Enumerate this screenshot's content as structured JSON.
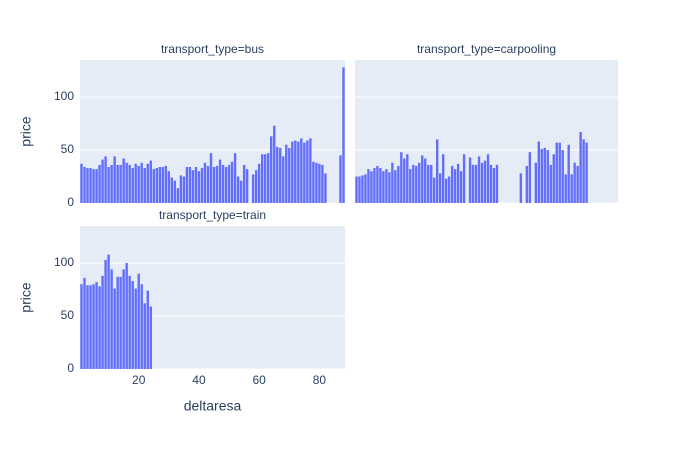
{
  "chart_data": [
    {
      "type": "bar",
      "title": "transport_type=bus",
      "ylabel": "price",
      "color": "#636efa",
      "x": [
        1,
        2,
        3,
        4,
        5,
        6,
        7,
        8,
        9,
        10,
        11,
        12,
        13,
        14,
        15,
        16,
        17,
        18,
        19,
        20,
        21,
        22,
        23,
        24,
        25,
        26,
        27,
        28,
        29,
        30,
        31,
        32,
        33,
        34,
        35,
        36,
        37,
        38,
        39,
        40,
        41,
        42,
        43,
        44,
        45,
        46,
        47,
        48,
        49,
        50,
        51,
        52,
        53,
        54,
        55,
        56,
        57,
        58,
        59,
        60,
        61,
        62,
        63,
        64,
        65,
        66,
        67,
        68,
        69,
        70,
        71,
        72,
        73,
        74,
        75,
        76,
        77,
        78,
        79,
        80,
        81,
        82,
        83,
        84,
        85,
        86,
        87,
        88
      ],
      "values": [
        37,
        34,
        33,
        33,
        32,
        32,
        36,
        41,
        44,
        34,
        36,
        44,
        36,
        36,
        42,
        38,
        36,
        33,
        37,
        35,
        38,
        33,
        37,
        40,
        32,
        33,
        34,
        34,
        35,
        30,
        24,
        21,
        14,
        26,
        25,
        34,
        34,
        31,
        34,
        30,
        33,
        38,
        35,
        47,
        34,
        35,
        41,
        36,
        34,
        36,
        39,
        47,
        25,
        21,
        36,
        32,
        null,
        27,
        31,
        37,
        46,
        46,
        47,
        63,
        73,
        53,
        52,
        44,
        55,
        52,
        58,
        59,
        58,
        61,
        57,
        59,
        61,
        39,
        38,
        37,
        36,
        28,
        null,
        null,
        null,
        null,
        45,
        128
      ],
      "xlim": [
        0.5,
        88.5
      ],
      "ylim": [
        0,
        135
      ],
      "yticks": [
        0,
        50,
        100
      ]
    },
    {
      "type": "bar",
      "title": "transport_type=carpooling",
      "color": "#636efa",
      "x": [
        1,
        2,
        3,
        4,
        5,
        6,
        7,
        8,
        9,
        10,
        11,
        12,
        13,
        14,
        15,
        16,
        17,
        18,
        19,
        20,
        21,
        22,
        23,
        24,
        25,
        26,
        27,
        28,
        29,
        30,
        31,
        32,
        33,
        34,
        35,
        36,
        37,
        38,
        39,
        40,
        41,
        42,
        43,
        44,
        45,
        46,
        47,
        48,
        49,
        50,
        51,
        52,
        53,
        54,
        55,
        56,
        57,
        58,
        59,
        60,
        61,
        62,
        63,
        64,
        65,
        66,
        67,
        68,
        69,
        70,
        71,
        72,
        73,
        74,
        75,
        76,
        77,
        78,
        79,
        80,
        81,
        82,
        83,
        84,
        85,
        86,
        87,
        88
      ],
      "values": [
        25,
        25,
        26,
        27,
        32,
        30,
        33,
        35,
        33,
        30,
        32,
        29,
        38,
        31,
        35,
        48,
        42,
        46,
        32,
        36,
        35,
        38,
        45,
        42,
        36,
        36,
        24,
        60,
        28,
        46,
        23,
        25,
        35,
        32,
        37,
        30,
        46,
        null,
        43,
        36,
        36,
        44,
        38,
        40,
        46,
        36,
        33,
        36,
        null,
        null,
        null,
        null,
        null,
        null,
        null,
        28,
        null,
        35,
        48,
        null,
        38,
        58,
        51,
        52,
        50,
        36,
        46,
        57,
        57,
        50,
        27,
        55,
        27,
        38,
        35,
        67,
        60,
        57,
        null,
        null,
        null,
        null,
        null,
        null,
        null,
        null,
        null,
        null
      ],
      "xlim": [
        0.5,
        88.5
      ],
      "ylim": [
        0,
        135
      ],
      "yticks": [
        0,
        50,
        100
      ],
      "ytick_labels": false
    },
    {
      "type": "bar",
      "title": "transport_type=train",
      "ylabel": "price",
      "xlabel": "deltaresa",
      "color": "#636efa",
      "x": [
        1,
        2,
        3,
        4,
        5,
        6,
        7,
        8,
        9,
        10,
        11,
        12,
        13,
        14,
        15,
        16,
        17,
        18,
        19,
        20,
        21,
        22,
        23,
        24,
        25,
        26
      ],
      "values": [
        80,
        86,
        79,
        79,
        80,
        82,
        78,
        88,
        103,
        108,
        94,
        76,
        87,
        87,
        94,
        100,
        88,
        83,
        76,
        90,
        80,
        62,
        74,
        59,
        null,
        null
      ],
      "xlim": [
        0.5,
        88.5
      ],
      "ylim": [
        0,
        135
      ],
      "yticks": [
        0,
        50,
        100
      ],
      "xticks": [
        20,
        40,
        60,
        80
      ]
    }
  ]
}
